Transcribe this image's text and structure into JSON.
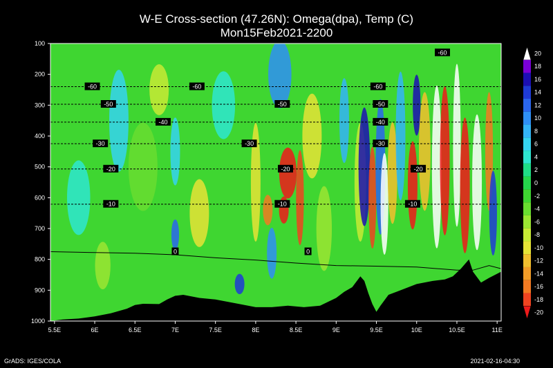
{
  "title_line1": "W-E Cross-section (47.26N): Omega(dpa), Temp (C)",
  "title_line2": "Mon15Feb2021-2200",
  "footer_left": "GrADS: IGES/COLA",
  "footer_right": "2021-02-16-04:30",
  "chart_data": {
    "type": "heatmap",
    "title": "W-E Cross-section (47.26N): Omega(dpa), Temp (C)",
    "subtitle": "Mon15Feb2021-2200",
    "x_ticks": [
      "5.5E",
      "6E",
      "6.5E",
      "7E",
      "7.5E",
      "8E",
      "8.5E",
      "9E",
      "9.5E",
      "10E",
      "10.5E",
      "11E"
    ],
    "xlim": [
      5.45,
      11.05
    ],
    "y_ticks": [
      100,
      200,
      300,
      400,
      500,
      600,
      700,
      800,
      900,
      1000
    ],
    "ylim": [
      1000,
      100
    ],
    "colorbar": {
      "levels": [
        "20",
        "18",
        "16",
        "14",
        "12",
        "10",
        "8",
        "6",
        "4",
        "2",
        "0",
        "-2",
        "-4",
        "-6",
        "-8",
        "-10",
        "-12",
        "-14",
        "-16",
        "-18",
        "-20"
      ],
      "colors": [
        "#ffffff",
        "#7a00d6",
        "#1c0fb3",
        "#1f3bd6",
        "#2a66ee",
        "#2f8ff5",
        "#34b4f7",
        "#35d4f0",
        "#2ee6d0",
        "#1fdc86",
        "#25d64c",
        "#3fd631",
        "#69dd30",
        "#9be532",
        "#c8ea35",
        "#e6e336",
        "#f2bf2e",
        "#f29d28",
        "#f27a22",
        "#ef4420",
        "#ee1a1a"
      ]
    },
    "temperature_contours": [
      {
        "value": -60,
        "p": 240,
        "label": "-60",
        "label_x": [
          5.97,
          7.27,
          9.52
        ]
      },
      {
        "value": -50,
        "p": 297,
        "label": "-50",
        "label_x": [
          6.17,
          8.33,
          9.55
        ]
      },
      {
        "value": -40,
        "p": 355,
        "label": "-40",
        "label_x": [
          6.85,
          9.55
        ]
      },
      {
        "value": -30,
        "p": 425,
        "label": "-30",
        "label_x": [
          6.07,
          7.92,
          9.55
        ]
      },
      {
        "value": -20,
        "p": 507,
        "label": "-20",
        "label_x": [
          6.2,
          8.37,
          10.02
        ]
      },
      {
        "value": -10,
        "p": 621,
        "label": "-10",
        "label_x": [
          6.2,
          8.33,
          9.95
        ]
      },
      {
        "value": 0,
        "p": 775,
        "label": "0",
        "label_x": [
          7.0,
          8.65
        ]
      }
    ],
    "top_label": {
      "label": "-60",
      "x": 10.32,
      "p": 130
    },
    "terrain": {
      "lon": [
        5.45,
        5.6,
        5.8,
        6.0,
        6.2,
        6.4,
        6.5,
        6.6,
        6.8,
        6.9,
        7.0,
        7.1,
        7.3,
        7.5,
        7.8,
        8.0,
        8.2,
        8.4,
        8.6,
        8.8,
        9.0,
        9.1,
        9.2,
        9.3,
        9.35,
        9.4,
        9.45,
        9.5,
        9.55,
        9.65,
        9.75,
        9.85,
        10.0,
        10.2,
        10.35,
        10.45,
        10.55,
        10.65,
        10.7,
        10.8,
        10.9,
        11.05
      ],
      "p": [
        1000,
        995,
        992,
        985,
        975,
        960,
        948,
        944,
        945,
        930,
        918,
        915,
        925,
        930,
        945,
        955,
        955,
        950,
        955,
        950,
        925,
        905,
        890,
        855,
        870,
        910,
        945,
        970,
        950,
        915,
        905,
        895,
        880,
        870,
        865,
        855,
        830,
        800,
        840,
        875,
        860,
        840
      ]
    },
    "surface_line": {
      "lon": [
        5.45,
        6.0,
        6.5,
        7.0,
        7.5,
        8.0,
        8.5,
        9.0,
        9.5,
        10.0,
        10.5,
        10.7,
        10.9,
        11.05
      ],
      "p": [
        775,
        778,
        780,
        785,
        795,
        802,
        812,
        820,
        822,
        825,
        835,
        835,
        820,
        830
      ]
    }
  }
}
